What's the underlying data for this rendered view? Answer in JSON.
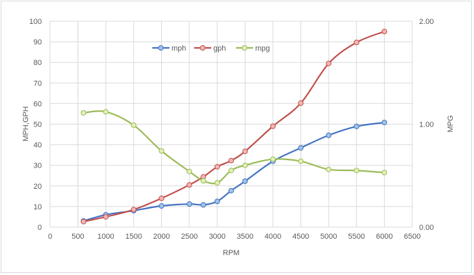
{
  "chart_data": {
    "type": "line",
    "title": "",
    "xlabel": "RPM",
    "ylabel": "MPH,GPH",
    "y2label": "MPG",
    "xlim": [
      0,
      6500
    ],
    "ylim": [
      0,
      100
    ],
    "y2lim": [
      0,
      2
    ],
    "xticks": [
      0,
      500,
      1000,
      1500,
      2000,
      2500,
      3000,
      3500,
      4000,
      4500,
      5000,
      5500,
      6000,
      6500
    ],
    "yticks": [
      0,
      10,
      20,
      30,
      40,
      50,
      60,
      70,
      80,
      90,
      100
    ],
    "y2ticks": [
      "0.00",
      "1.00",
      "2.00"
    ],
    "grid": true,
    "legend_position": "top-center",
    "x": [
      600,
      1000,
      1500,
      2000,
      2500,
      2750,
      3000,
      3250,
      3500,
      4000,
      4500,
      5000,
      5500,
      6000
    ],
    "series": [
      {
        "name": "mph",
        "axis": "left",
        "color": "#4472c4",
        "marker_fill": "#9dc3e6",
        "values": [
          3,
          6,
          8,
          10.3,
          11.2,
          10.8,
          12.5,
          17.7,
          22.3,
          32,
          38.5,
          44.6,
          48.9,
          50.8
        ]
      },
      {
        "name": "gph",
        "axis": "left",
        "color": "#c0504d",
        "marker_fill": "#f4b6b5",
        "values": [
          2.7,
          5,
          8.5,
          14,
          20.5,
          24.4,
          29.3,
          32.3,
          36.8,
          49,
          60.2,
          79.5,
          89.7,
          95
        ]
      },
      {
        "name": "mpg",
        "axis": "right",
        "color": "#9bbb59",
        "marker_fill": "#e2f0b6",
        "values": [
          1.11,
          1.12,
          0.99,
          0.74,
          0.54,
          0.45,
          0.43,
          0.55,
          0.6,
          0.66,
          0.64,
          0.56,
          0.55,
          0.53
        ]
      }
    ]
  }
}
